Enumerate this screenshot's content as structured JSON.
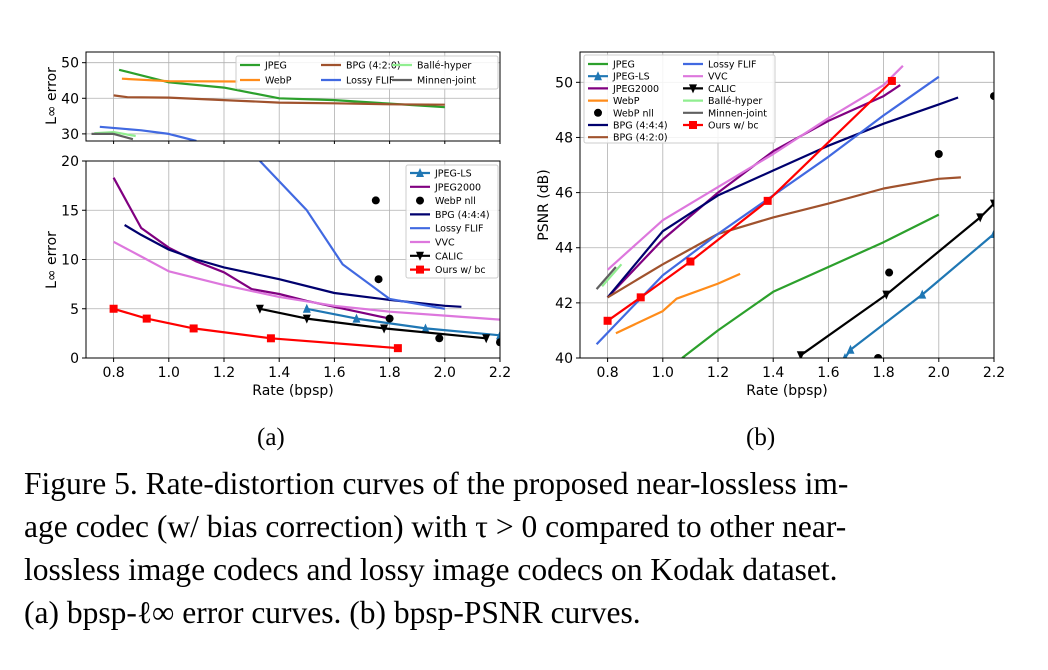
{
  "colors": {
    "JPEG": "#2ca02c",
    "JPEG-LS": "#1f77b4",
    "JPEG2000": "#800080",
    "WebP": "#ff8c1a",
    "BPG (4:4:4)": "#00006e",
    "BPG (4:2:0)": "#a0522d",
    "Lossy FLIF": "#4169e1",
    "VVC": "#dd77dd",
    "CALIC": "#000000",
    "Ballé-hyper": "#90ee90",
    "Minnen-joint": "#606060",
    "Ours w/ bc": "#ff0000"
  },
  "sublabels": {
    "a": "(a)",
    "b": "(b)"
  },
  "caption": {
    "line1": "Figure 5. Rate-distortion curves of the proposed near-lossless im-",
    "line2": "age codec (w/ bias correction) with τ > 0 compared to other near-",
    "line3": "lossless image codecs and lossy image codecs on Kodak dataset.",
    "line4": "(a) bpsp-ℓ∞ error curves. (b) bpsp-PSNR curves."
  },
  "chart_data": [
    {
      "id": "a-top",
      "type": "line",
      "xlim": [
        0.7,
        2.2
      ],
      "ylim": [
        28,
        53
      ],
      "yticks": [
        30,
        40,
        50
      ],
      "ylabel": "L∞ error",
      "legend_position": "upper-right",
      "legend_columns": 3,
      "legend": [
        "JPEG",
        "WebP",
        "BPG (4:2:0)",
        "Lossy FLIF",
        "Ballé-hyper",
        "Minnen-joint"
      ],
      "series": [
        {
          "name": "JPEG",
          "marker": "none",
          "points": [
            [
              0.82,
              48
            ],
            [
              1.0,
              44.5
            ],
            [
              1.2,
              43
            ],
            [
              1.4,
              40
            ],
            [
              1.6,
              39.5
            ],
            [
              1.8,
              38.5
            ],
            [
              2.0,
              37.5
            ]
          ]
        },
        {
          "name": "WebP",
          "marker": "none",
          "points": [
            [
              0.83,
              45.5
            ],
            [
              1.0,
              44.8
            ],
            [
              1.25,
              44.7
            ]
          ]
        },
        {
          "name": "BPG (4:2:0)",
          "marker": "none",
          "points": [
            [
              0.8,
              40.8
            ],
            [
              0.85,
              40.3
            ],
            [
              1.0,
              40.2
            ],
            [
              1.2,
              39.5
            ],
            [
              1.4,
              38.8
            ],
            [
              1.6,
              38.6
            ],
            [
              1.8,
              38.3
            ],
            [
              2.0,
              38.2
            ]
          ]
        },
        {
          "name": "Lossy FLIF",
          "marker": "none",
          "points": [
            [
              0.75,
              32
            ],
            [
              0.9,
              31
            ],
            [
              1.0,
              30
            ],
            [
              1.1,
              28
            ]
          ]
        },
        {
          "name": "Ballé-hyper",
          "marker": "none",
          "points": [
            [
              0.73,
              30.2
            ],
            [
              0.8,
              30.5
            ],
            [
              0.88,
              29.4
            ]
          ]
        },
        {
          "name": "Minnen-joint",
          "marker": "none",
          "points": [
            [
              0.72,
              30
            ],
            [
              0.8,
              30
            ],
            [
              0.87,
              28.5
            ]
          ]
        }
      ]
    },
    {
      "id": "a-bottom",
      "type": "line",
      "xlabel": "Rate (bpsp)",
      "ylabel": "L∞ error",
      "xlim": [
        0.7,
        2.2
      ],
      "ylim": [
        0,
        20
      ],
      "xticks": [
        0.8,
        1.0,
        1.2,
        1.4,
        1.6,
        1.8,
        2.0,
        2.2
      ],
      "yticks": [
        0,
        5,
        10,
        15,
        20
      ],
      "legend_position": "upper-right",
      "legend": [
        "JPEG-LS",
        "JPEG2000",
        "WebP nll",
        "BPG (4:4:4)",
        "Lossy FLIF",
        "VVC",
        "CALIC",
        "Ours w/ bc"
      ],
      "series": [
        {
          "name": "JPEG-LS",
          "marker": "triangle-up",
          "points": [
            [
              1.5,
              5
            ],
            [
              1.68,
              4
            ],
            [
              1.93,
              3
            ],
            [
              2.2,
              2.3
            ]
          ]
        },
        {
          "name": "JPEG2000",
          "marker": "none",
          "points": [
            [
              0.8,
              18.3
            ],
            [
              0.9,
              13.2
            ],
            [
              1.0,
              11.2
            ],
            [
              1.1,
              9.8
            ],
            [
              1.2,
              8.7
            ],
            [
              1.3,
              7
            ],
            [
              1.4,
              6.5
            ],
            [
              1.5,
              5.8
            ],
            [
              1.6,
              5.2
            ],
            [
              1.7,
              4.6
            ],
            [
              1.8,
              4
            ]
          ]
        },
        {
          "name": "WebP nll",
          "marker": "circle",
          "points": [
            [
              1.75,
              16
            ],
            [
              1.76,
              8
            ],
            [
              1.8,
              4
            ],
            [
              1.98,
              2
            ],
            [
              2.2,
              1.6
            ]
          ]
        },
        {
          "name": "BPG (4:4:4)",
          "marker": "none",
          "points": [
            [
              0.84,
              13.5
            ],
            [
              0.9,
              12.5
            ],
            [
              1.0,
              11
            ],
            [
              1.1,
              10
            ],
            [
              1.2,
              9.2
            ],
            [
              1.4,
              8
            ],
            [
              1.6,
              6.6
            ],
            [
              1.8,
              5.9
            ],
            [
              2.0,
              5.3
            ],
            [
              2.06,
              5.2
            ]
          ]
        },
        {
          "name": "Lossy FLIF",
          "marker": "none",
          "points": [
            [
              1.33,
              20
            ],
            [
              1.5,
              15
            ],
            [
              1.63,
              9.5
            ],
            [
              1.8,
              6
            ],
            [
              2.0,
              5
            ]
          ]
        },
        {
          "name": "VVC",
          "marker": "none",
          "points": [
            [
              0.8,
              11.8
            ],
            [
              0.9,
              10.3
            ],
            [
              1.0,
              8.8
            ],
            [
              1.2,
              7.4
            ],
            [
              1.4,
              6.2
            ],
            [
              1.6,
              5.3
            ],
            [
              1.8,
              4.7
            ],
            [
              2.0,
              4.3
            ],
            [
              2.2,
              3.9
            ]
          ]
        },
        {
          "name": "CALIC",
          "marker": "triangle-down",
          "points": [
            [
              1.33,
              5
            ],
            [
              1.5,
              4
            ],
            [
              1.78,
              3
            ],
            [
              2.15,
              2
            ]
          ]
        },
        {
          "name": "Ours w/ bc",
          "marker": "square",
          "points": [
            [
              0.8,
              5
            ],
            [
              0.92,
              4
            ],
            [
              1.09,
              3
            ],
            [
              1.37,
              2
            ],
            [
              1.83,
              1
            ]
          ]
        }
      ]
    },
    {
      "id": "b",
      "type": "line",
      "xlabel": "Rate (bpsp)",
      "ylabel": "PSNR (dB)",
      "xlim": [
        0.7,
        2.2
      ],
      "ylim": [
        40,
        51.1
      ],
      "xticks": [
        0.8,
        1.0,
        1.2,
        1.4,
        1.6,
        1.8,
        2.0,
        2.2
      ],
      "yticks": [
        40,
        42,
        44,
        46,
        48,
        50
      ],
      "legend_position": "upper-left",
      "legend_columns": 2,
      "legend": [
        "JPEG",
        "JPEG-LS",
        "JPEG2000",
        "WebP",
        "WebP nll",
        "BPG (4:4:4)",
        "BPG (4:2:0)",
        "Lossy FLIF",
        "VVC",
        "CALIC",
        "Ballé-hyper",
        "Minnen-joint",
        "Ours w/ bc"
      ],
      "series": [
        {
          "name": "JPEG",
          "marker": "none",
          "points": [
            [
              1.07,
              40
            ],
            [
              1.2,
              41
            ],
            [
              1.4,
              42.4
            ],
            [
              1.6,
              43.3
            ],
            [
              1.8,
              44.2
            ],
            [
              2.0,
              45.2
            ]
          ]
        },
        {
          "name": "JPEG-LS",
          "marker": "triangle-up",
          "points": [
            [
              1.66,
              40
            ],
            [
              1.68,
              40.3
            ],
            [
              1.94,
              42.3
            ],
            [
              2.2,
              44.5
            ]
          ]
        },
        {
          "name": "JPEG2000",
          "marker": "none",
          "points": [
            [
              0.8,
              42.2
            ],
            [
              1.0,
              44.3
            ],
            [
              1.2,
              46
            ],
            [
              1.4,
              47.5
            ],
            [
              1.6,
              48.6
            ],
            [
              1.8,
              49.5
            ],
            [
              1.86,
              49.9
            ]
          ]
        },
        {
          "name": "WebP",
          "marker": "none",
          "points": [
            [
              0.83,
              40.9
            ],
            [
              1.0,
              41.7
            ],
            [
              1.05,
              42.15
            ],
            [
              1.2,
              42.7
            ],
            [
              1.28,
              43.05
            ]
          ]
        },
        {
          "name": "WebP nll",
          "marker": "circle",
          "points": [
            [
              1.78,
              40
            ],
            [
              1.82,
              43.1
            ],
            [
              2.0,
              47.4
            ],
            [
              2.2,
              49.5
            ]
          ]
        },
        {
          "name": "BPG (4:4:4)",
          "marker": "none",
          "points": [
            [
              0.8,
              42.2
            ],
            [
              1.0,
              44.6
            ],
            [
              1.2,
              45.9
            ],
            [
              1.4,
              46.8
            ],
            [
              1.6,
              47.7
            ],
            [
              1.8,
              48.5
            ],
            [
              2.0,
              49.2
            ],
            [
              2.07,
              49.45
            ]
          ]
        },
        {
          "name": "BPG (4:2:0)",
          "marker": "none",
          "points": [
            [
              0.8,
              42.2
            ],
            [
              1.0,
              43.4
            ],
            [
              1.2,
              44.5
            ],
            [
              1.4,
              45.1
            ],
            [
              1.6,
              45.6
            ],
            [
              1.8,
              46.15
            ],
            [
              2.0,
              46.5
            ],
            [
              2.08,
              46.55
            ]
          ]
        },
        {
          "name": "Lossy FLIF",
          "marker": "none",
          "points": [
            [
              0.76,
              40.5
            ],
            [
              1.0,
              43
            ],
            [
              1.2,
              44.5
            ],
            [
              1.4,
              45.9
            ],
            [
              1.6,
              47.3
            ],
            [
              1.8,
              48.8
            ],
            [
              2.0,
              50.2
            ]
          ]
        },
        {
          "name": "VVC",
          "marker": "none",
          "points": [
            [
              0.8,
              43.2
            ],
            [
              1.0,
              45
            ],
            [
              1.2,
              46.2
            ],
            [
              1.4,
              47.4
            ],
            [
              1.6,
              48.7
            ],
            [
              1.8,
              49.9
            ],
            [
              1.87,
              50.6
            ]
          ]
        },
        {
          "name": "CALIC",
          "marker": "triangle-down",
          "points": [
            [
              1.5,
              40.1
            ],
            [
              1.81,
              42.3
            ],
            [
              2.15,
              45.1
            ],
            [
              2.2,
              45.6
            ]
          ]
        },
        {
          "name": "Ballé-hyper",
          "marker": "none",
          "points": [
            [
              0.78,
              42.6
            ],
            [
              0.85,
              43.4
            ]
          ]
        },
        {
          "name": "Minnen-joint",
          "marker": "none",
          "points": [
            [
              0.76,
              42.5
            ],
            [
              0.83,
              43.3
            ]
          ]
        },
        {
          "name": "Ours w/ bc",
          "marker": "square",
          "points": [
            [
              0.8,
              41.35
            ],
            [
              0.92,
              42.2
            ],
            [
              1.1,
              43.5
            ],
            [
              1.38,
              45.7
            ],
            [
              1.83,
              50.05
            ]
          ]
        }
      ]
    }
  ]
}
